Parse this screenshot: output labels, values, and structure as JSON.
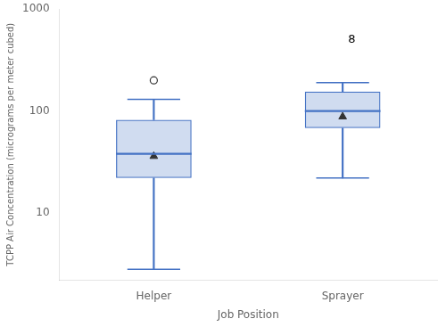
{
  "chart_data": {
    "type": "box",
    "xlabel": "Job Position",
    "ylabel": "TCPP Air Concentration (micrograms per meter cubed)",
    "categories": [
      "Helper",
      "Sprayer"
    ],
    "q1": [
      22,
      68
    ],
    "median": [
      38,
      100
    ],
    "q3": [
      82,
      155
    ],
    "whisker_low": [
      2.8,
      22
    ],
    "whisker_high": [
      130,
      190
    ],
    "gm": [
      36,
      88
    ],
    "outliers": [
      [
        200
      ],
      []
    ],
    "annotations": [
      {
        "text": "8",
        "x": "Sprayer",
        "y": 500
      }
    ],
    "ylim": [
      2.2,
      1000
    ],
    "yticks": [
      10,
      100,
      1000
    ],
    "log": "y",
    "grid": false,
    "color": "#4472c4"
  }
}
